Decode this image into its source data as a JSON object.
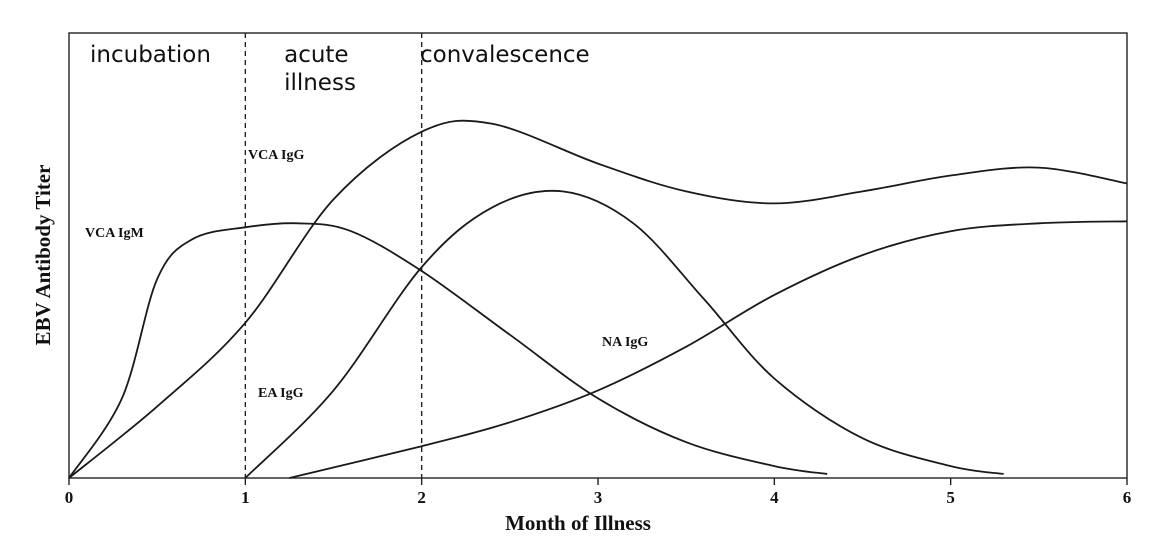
{
  "chart_data": {
    "type": "line",
    "title": "",
    "xlabel": "Month of Illness",
    "ylabel": "EBV Antibody Titer",
    "xlim": [
      0,
      6
    ],
    "ylim": [
      0,
      1
    ],
    "x_ticks": [
      "0",
      "1",
      "2",
      "3",
      "4",
      "5",
      "6"
    ],
    "y_ticks": [],
    "grid": false,
    "legend": "none",
    "phases": [
      {
        "label": "incubation"
      },
      {
        "label": "acute illness"
      },
      {
        "label": "convalescence"
      }
    ],
    "phase_boundaries": [
      1,
      2
    ],
    "series": [
      {
        "name": "VCA IgM",
        "label": "VCA IgM",
        "points": [
          [
            0,
            0
          ],
          [
            0.3,
            0.2
          ],
          [
            0.5,
            0.5
          ],
          [
            0.7,
            0.6
          ],
          [
            1,
            0.63
          ],
          [
            1.3,
            0.64
          ],
          [
            1.6,
            0.62
          ],
          [
            2,
            0.52
          ],
          [
            2.5,
            0.36
          ],
          [
            3,
            0.2
          ],
          [
            3.5,
            0.09
          ],
          [
            4,
            0.03
          ],
          [
            4.3,
            0.01
          ]
        ]
      },
      {
        "name": "VCA IgG",
        "label": "VCA IgG",
        "points": [
          [
            0,
            0
          ],
          [
            0.5,
            0.18
          ],
          [
            1,
            0.39
          ],
          [
            1.5,
            0.7
          ],
          [
            2,
            0.87
          ],
          [
            2.4,
            0.89
          ],
          [
            3,
            0.79
          ],
          [
            3.5,
            0.72
          ],
          [
            4,
            0.69
          ],
          [
            4.5,
            0.72
          ],
          [
            5,
            0.76
          ],
          [
            5.5,
            0.78
          ],
          [
            6,
            0.74
          ]
        ]
      },
      {
        "name": "EA IgG",
        "label": "EA IgG",
        "points": [
          [
            1,
            0
          ],
          [
            1.5,
            0.22
          ],
          [
            2,
            0.53
          ],
          [
            2.4,
            0.68
          ],
          [
            2.8,
            0.72
          ],
          [
            3.2,
            0.64
          ],
          [
            3.6,
            0.45
          ],
          [
            4,
            0.25
          ],
          [
            4.5,
            0.1
          ],
          [
            5,
            0.03
          ],
          [
            5.3,
            0.01
          ]
        ]
      },
      {
        "name": "NA IgG",
        "label": "NA IgG",
        "points": [
          [
            1.25,
            0
          ],
          [
            2,
            0.08
          ],
          [
            2.5,
            0.14
          ],
          [
            3,
            0.22
          ],
          [
            3.5,
            0.33
          ],
          [
            4,
            0.46
          ],
          [
            4.5,
            0.56
          ],
          [
            5,
            0.62
          ],
          [
            5.5,
            0.64
          ],
          [
            6,
            0.645
          ]
        ]
      }
    ]
  }
}
